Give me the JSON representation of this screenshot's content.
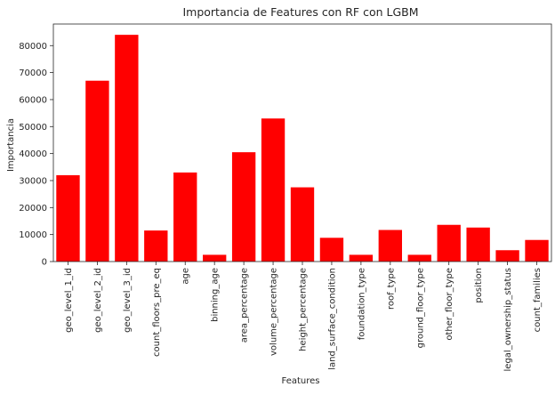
{
  "chart_data": {
    "type": "bar",
    "title": "Importancia de Features con RF con LGBM",
    "xlabel": "Features",
    "ylabel": "Importancia",
    "categories": [
      "geo_level_1_id",
      "geo_level_2_id",
      "geo_level_3_id",
      "count_floors_pre_eq",
      "age",
      "binning_age",
      "area_percentage",
      "volume_percentage",
      "height_percentage",
      "land_surface_condition",
      "foundation_type",
      "roof_type",
      "ground_floor_type",
      "other_floor_type",
      "position",
      "legal_ownership_status",
      "count_families"
    ],
    "values": [
      32000,
      67000,
      84000,
      11500,
      33000,
      2500,
      40500,
      53000,
      27500,
      8800,
      2500,
      11700,
      2500,
      13600,
      12600,
      4200,
      8000
    ],
    "ylim": [
      0,
      88000
    ],
    "yticks": [
      0,
      10000,
      20000,
      30000,
      40000,
      50000,
      60000,
      70000,
      80000
    ],
    "bar_color": "#ff0000",
    "grid": false
  }
}
